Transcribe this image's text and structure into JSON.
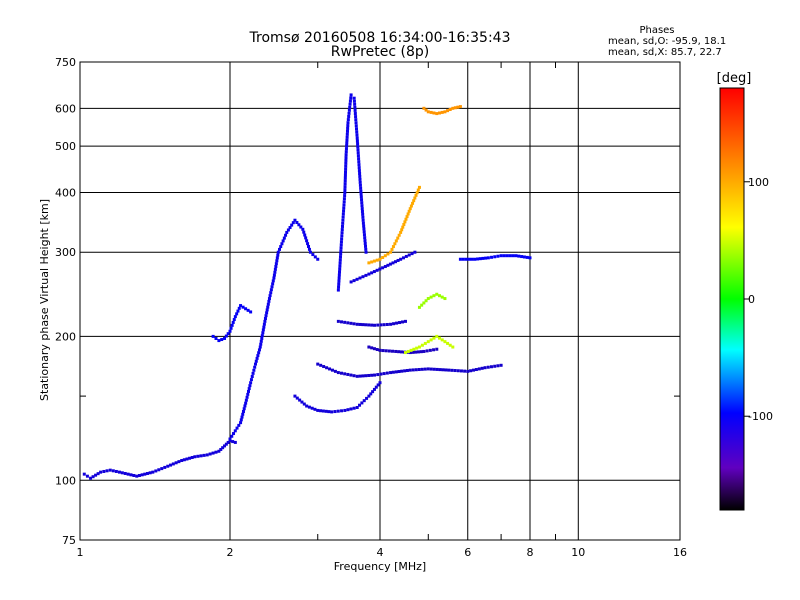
{
  "chart_data": {
    "type": "scatter",
    "title": "Tromsø 20160508 16:34:00-16:35:43",
    "subtitle": "RwPretec (8p)",
    "phases": {
      "title": "Phases",
      "line_o": "mean, sd,O: -95.9, 18.1",
      "line_x": "mean, sd,X:  85.7, 22.7"
    },
    "xlabel": "Frequency [MHz]",
    "ylabel": "Stationary phase Virtual Height [km]",
    "x_scale": "log",
    "y_scale": "log",
    "xlim": [
      1,
      16
    ],
    "ylim": [
      75,
      750
    ],
    "x_ticks": [
      1,
      2,
      4,
      6,
      8,
      10,
      16
    ],
    "x_minor_ticks": [
      3,
      5,
      7,
      9
    ],
    "y_ticks": [
      75,
      100,
      200,
      300,
      400,
      500,
      600,
      750
    ],
    "y_minor_ticks": [
      150
    ],
    "grid": true,
    "colorbar": {
      "label": "[deg]",
      "ticks": [
        100,
        0,
        -100
      ],
      "range": [
        -180,
        180
      ],
      "colors": [
        "#ff0000",
        "#ff8000",
        "#ffff00",
        "#00ff00",
        "#00ffff",
        "#0000ff",
        "#8000ff",
        "#000000"
      ]
    },
    "traces": [
      {
        "phase": -110,
        "points": [
          [
            1.02,
            103
          ],
          [
            1.05,
            101
          ],
          [
            1.1,
            104
          ],
          [
            1.15,
            105
          ],
          [
            1.2,
            104
          ],
          [
            1.3,
            102
          ],
          [
            1.4,
            104
          ],
          [
            1.5,
            107
          ],
          [
            1.6,
            110
          ],
          [
            1.7,
            112
          ],
          [
            1.8,
            113
          ],
          [
            1.9,
            115
          ],
          [
            1.95,
            118
          ],
          [
            2.0,
            121
          ],
          [
            2.05,
            120
          ]
        ]
      },
      {
        "phase": -105,
        "points": [
          [
            2.0,
            122
          ],
          [
            2.1,
            132
          ],
          [
            2.15,
            145
          ],
          [
            2.2,
            160
          ],
          [
            2.25,
            175
          ],
          [
            2.3,
            190
          ],
          [
            2.35,
            215
          ],
          [
            2.4,
            240
          ],
          [
            2.45,
            265
          ],
          [
            2.5,
            300
          ],
          [
            2.6,
            330
          ],
          [
            2.7,
            350
          ],
          [
            2.8,
            335
          ],
          [
            2.9,
            300
          ],
          [
            3.0,
            290
          ]
        ]
      },
      {
        "phase": -100,
        "points": [
          [
            1.85,
            200
          ],
          [
            1.9,
            196
          ],
          [
            1.95,
            198
          ],
          [
            2.0,
            205
          ],
          [
            2.05,
            220
          ],
          [
            2.1,
            232
          ],
          [
            2.2,
            225
          ]
        ]
      },
      {
        "phase": -105,
        "points": [
          [
            3.3,
            250
          ],
          [
            3.35,
            320
          ],
          [
            3.4,
            400
          ],
          [
            3.42,
            480
          ],
          [
            3.45,
            560
          ],
          [
            3.5,
            640
          ],
          [
            3.55,
            630
          ],
          [
            3.6,
            520
          ],
          [
            3.65,
            420
          ],
          [
            3.7,
            350
          ],
          [
            3.75,
            300
          ]
        ]
      },
      {
        "phase": -110,
        "points": [
          [
            2.7,
            150
          ],
          [
            2.85,
            143
          ],
          [
            3.0,
            140
          ],
          [
            3.2,
            139
          ],
          [
            3.4,
            140
          ],
          [
            3.6,
            142
          ],
          [
            3.8,
            150
          ],
          [
            4.0,
            160
          ]
        ]
      },
      {
        "phase": -115,
        "points": [
          [
            3.0,
            175
          ],
          [
            3.3,
            168
          ],
          [
            3.6,
            165
          ],
          [
            3.9,
            166
          ],
          [
            4.2,
            168
          ],
          [
            4.6,
            170
          ],
          [
            5.0,
            171
          ],
          [
            5.5,
            170
          ],
          [
            6.0,
            169
          ],
          [
            6.5,
            172
          ],
          [
            7.0,
            174
          ]
        ]
      },
      {
        "phase": -120,
        "points": [
          [
            3.8,
            190
          ],
          [
            4.0,
            187
          ],
          [
            4.3,
            186
          ],
          [
            4.6,
            185
          ],
          [
            4.9,
            186
          ],
          [
            5.2,
            188
          ]
        ]
      },
      {
        "phase": -115,
        "points": [
          [
            3.3,
            215
          ],
          [
            3.6,
            212
          ],
          [
            3.9,
            211
          ],
          [
            4.2,
            212
          ],
          [
            4.5,
            215
          ]
        ]
      },
      {
        "phase": -100,
        "points": [
          [
            5.8,
            290
          ],
          [
            6.2,
            290
          ],
          [
            6.6,
            292
          ],
          [
            7.0,
            295
          ],
          [
            7.5,
            295
          ],
          [
            8.0,
            292
          ]
        ]
      },
      {
        "phase": 100,
        "points": [
          [
            3.8,
            285
          ],
          [
            4.0,
            290
          ],
          [
            4.2,
            300
          ],
          [
            4.4,
            330
          ],
          [
            4.6,
            370
          ],
          [
            4.8,
            410
          ]
        ]
      },
      {
        "phase": 110,
        "points": [
          [
            4.9,
            600
          ],
          [
            5.0,
            590
          ],
          [
            5.2,
            585
          ],
          [
            5.4,
            590
          ],
          [
            5.6,
            600
          ],
          [
            5.8,
            605
          ]
        ]
      },
      {
        "phase": 50,
        "points": [
          [
            4.5,
            185
          ],
          [
            4.8,
            190
          ],
          [
            5.0,
            195
          ],
          [
            5.2,
            200
          ],
          [
            5.4,
            195
          ],
          [
            5.6,
            190
          ]
        ]
      },
      {
        "phase": 40,
        "points": [
          [
            4.8,
            230
          ],
          [
            5.0,
            240
          ],
          [
            5.2,
            245
          ],
          [
            5.4,
            240
          ]
        ]
      },
      {
        "phase": -110,
        "points": [
          [
            3.5,
            260
          ],
          [
            3.8,
            270
          ],
          [
            4.1,
            280
          ],
          [
            4.4,
            290
          ],
          [
            4.7,
            300
          ]
        ]
      }
    ]
  }
}
